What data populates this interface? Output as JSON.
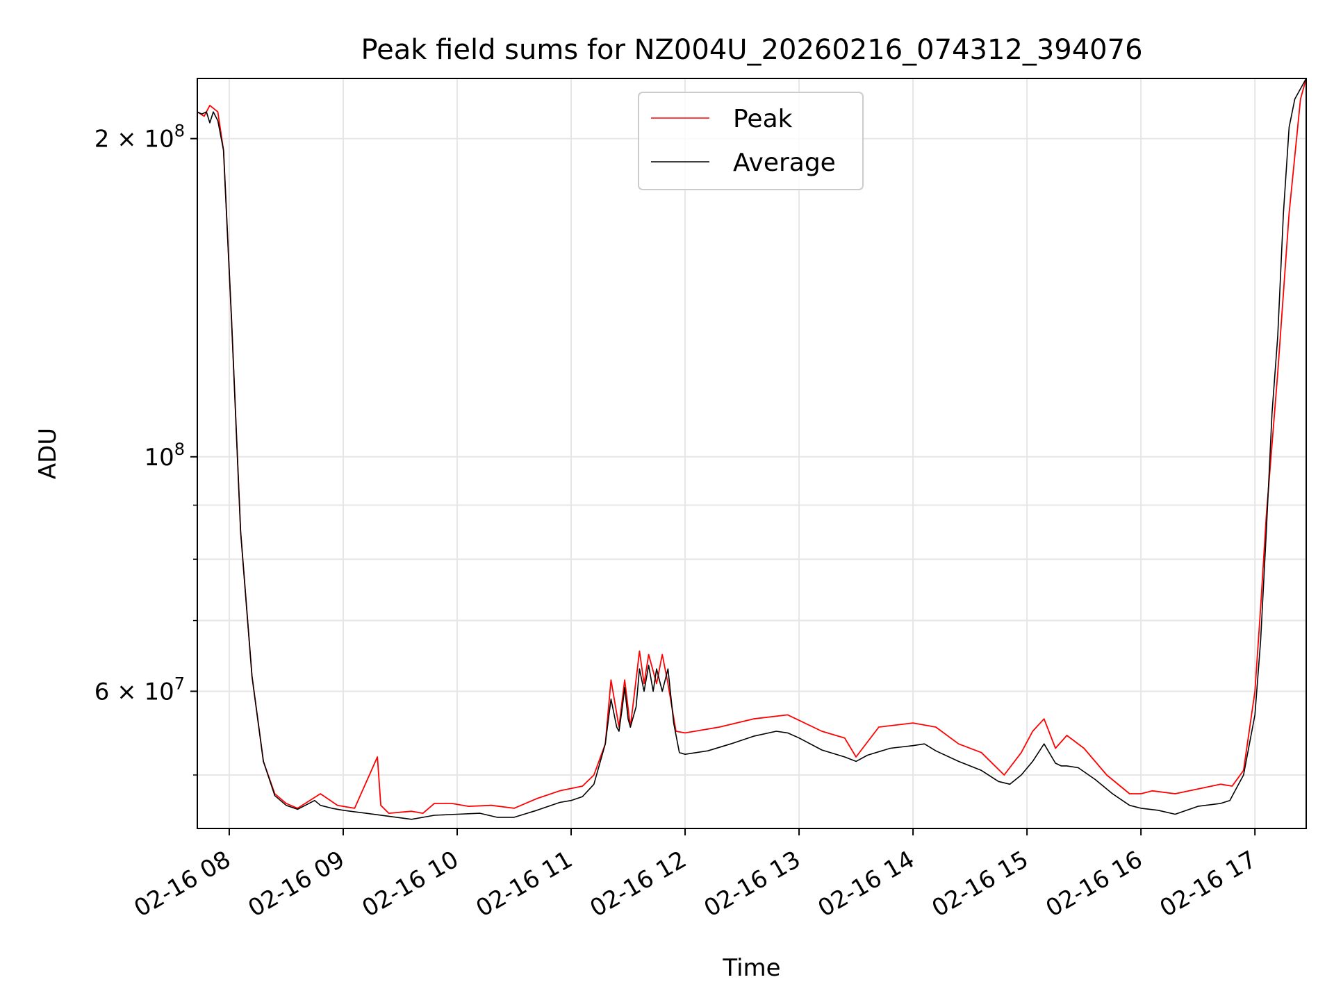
{
  "chart_data": {
    "type": "line",
    "title": "Peak field sums for NZ004U_20260216_074312_394076",
    "xlabel": "Time",
    "ylabel": "ADU",
    "y_scale": "log",
    "xlim_hours": [
      7.72,
      17.45
    ],
    "ylim": [
      44500000,
      228000000
    ],
    "grid": true,
    "legend_position": "top-center",
    "x_ticks": [
      {
        "value": 8,
        "label": "02-16 08"
      },
      {
        "value": 9,
        "label": "02-16 09"
      },
      {
        "value": 10,
        "label": "02-16 10"
      },
      {
        "value": 11,
        "label": "02-16 11"
      },
      {
        "value": 12,
        "label": "02-16 12"
      },
      {
        "value": 13,
        "label": "02-16 13"
      },
      {
        "value": 14,
        "label": "02-16 14"
      },
      {
        "value": 15,
        "label": "02-16 15"
      },
      {
        "value": 16,
        "label": "02-16 16"
      },
      {
        "value": 17,
        "label": "02-16 17"
      }
    ],
    "y_ticks": [
      {
        "value": 200000000,
        "mantissa": "2",
        "exponent": "8"
      },
      {
        "value": 100000000,
        "mantissa": "",
        "exponent": "8"
      },
      {
        "value": 60000000,
        "mantissa": "6",
        "exponent": "7"
      }
    ],
    "y_minor_ticks": [
      50000000,
      70000000,
      80000000,
      90000000
    ],
    "series": [
      {
        "name": "Peak",
        "color": "#ff0000",
        "x_hours": [
          7.72,
          7.78,
          7.83,
          7.9,
          7.95,
          8.02,
          8.1,
          8.2,
          8.3,
          8.4,
          8.5,
          8.6,
          8.8,
          8.95,
          9.1,
          9.3,
          9.33,
          9.4,
          9.6,
          9.7,
          9.8,
          9.95,
          10.1,
          10.3,
          10.5,
          10.7,
          10.9,
          11.1,
          11.2,
          11.3,
          11.35,
          11.42,
          11.47,
          11.52,
          11.6,
          11.64,
          11.68,
          11.75,
          11.8,
          11.85,
          11.92,
          12.0,
          12.3,
          12.6,
          12.9,
          13.2,
          13.4,
          13.5,
          13.7,
          14.0,
          14.2,
          14.4,
          14.6,
          14.8,
          14.95,
          15.05,
          15.15,
          15.25,
          15.35,
          15.5,
          15.7,
          15.9,
          16.0,
          16.1,
          16.3,
          16.5,
          16.7,
          16.8,
          16.9,
          17.0,
          17.05,
          17.1,
          17.2,
          17.3,
          17.4,
          17.45
        ],
        "y": [
          212000000,
          210000000,
          215000000,
          212000000,
          195000000,
          135000000,
          85000000,
          62000000,
          51500000,
          48000000,
          47000000,
          46500000,
          48000000,
          46800000,
          46500000,
          52000000,
          46800000,
          46000000,
          46200000,
          46000000,
          47000000,
          47000000,
          46700000,
          46800000,
          46500000,
          47500000,
          48300000,
          48800000,
          50000000,
          53500000,
          61500000,
          55500000,
          61500000,
          55500000,
          65500000,
          61000000,
          65000000,
          61000000,
          65000000,
          61000000,
          55000000,
          54800000,
          55500000,
          56500000,
          57000000,
          55000000,
          54200000,
          52000000,
          55500000,
          56000000,
          55500000,
          53500000,
          52500000,
          50000000,
          52500000,
          55000000,
          56500000,
          53000000,
          54500000,
          53000000,
          50000000,
          48000000,
          48000000,
          48300000,
          48000000,
          48500000,
          49000000,
          48800000,
          50500000,
          60000000,
          72000000,
          88000000,
          120000000,
          170000000,
          218000000,
          228000000
        ]
      },
      {
        "name": "Average",
        "color": "#000000",
        "x_hours": [
          7.72,
          7.76,
          7.8,
          7.83,
          7.86,
          7.9,
          7.95,
          8.02,
          8.1,
          8.2,
          8.3,
          8.4,
          8.5,
          8.6,
          8.75,
          8.8,
          8.9,
          9.0,
          9.2,
          9.4,
          9.6,
          9.8,
          10.0,
          10.2,
          10.35,
          10.5,
          10.7,
          10.9,
          11.0,
          11.1,
          11.2,
          11.3,
          11.35,
          11.4,
          11.42,
          11.45,
          11.47,
          11.5,
          11.52,
          11.57,
          11.6,
          11.64,
          11.68,
          11.72,
          11.75,
          11.8,
          11.85,
          11.9,
          11.95,
          12.0,
          12.2,
          12.4,
          12.6,
          12.8,
          12.9,
          13.0,
          13.2,
          13.4,
          13.5,
          13.6,
          13.8,
          14.0,
          14.1,
          14.2,
          14.4,
          14.6,
          14.75,
          14.85,
          14.95,
          15.05,
          15.15,
          15.25,
          15.3,
          15.35,
          15.45,
          15.6,
          15.75,
          15.9,
          16.0,
          16.15,
          16.3,
          16.5,
          16.7,
          16.78,
          16.9,
          17.0,
          17.05,
          17.1,
          17.15,
          17.2,
          17.25,
          17.3,
          17.35,
          17.45
        ],
        "y": [
          212000000,
          211000000,
          212000000,
          207000000,
          212000000,
          208000000,
          195000000,
          135000000,
          85000000,
          62000000,
          51500000,
          47800000,
          46800000,
          46400000,
          47300000,
          46800000,
          46500000,
          46300000,
          46000000,
          45700000,
          45400000,
          45800000,
          45900000,
          46000000,
          45600000,
          45600000,
          46300000,
          47100000,
          47300000,
          47700000,
          49000000,
          53500000,
          59000000,
          55500000,
          55000000,
          58000000,
          60500000,
          56500000,
          55500000,
          58000000,
          63000000,
          60000000,
          63500000,
          60000000,
          63000000,
          60000000,
          63000000,
          56000000,
          52500000,
          52300000,
          52700000,
          53500000,
          54400000,
          55000000,
          54800000,
          54200000,
          52800000,
          52000000,
          51500000,
          52200000,
          53000000,
          53300000,
          53500000,
          52700000,
          51500000,
          50500000,
          49300000,
          49000000,
          50000000,
          51500000,
          53500000,
          51300000,
          51000000,
          51000000,
          50800000,
          49500000,
          48000000,
          46800000,
          46500000,
          46300000,
          45900000,
          46700000,
          47000000,
          47300000,
          50000000,
          57000000,
          67000000,
          85000000,
          110000000,
          130000000,
          170000000,
          205000000,
          218000000,
          228000000
        ]
      }
    ]
  }
}
